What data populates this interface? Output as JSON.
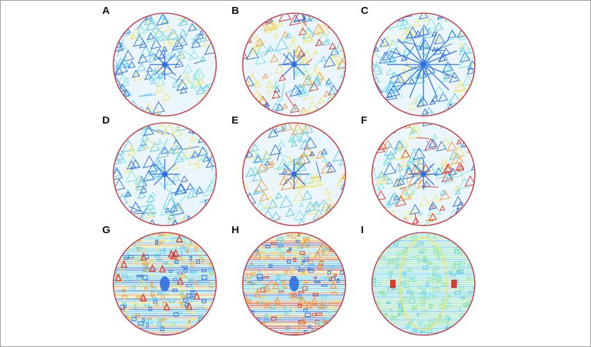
{
  "figure": {
    "panels": [
      {
        "label": "A",
        "style": "random-blue"
      },
      {
        "label": "B",
        "style": "random-yellow"
      },
      {
        "label": "C",
        "style": "star-blue"
      },
      {
        "label": "D",
        "style": "random-blue"
      },
      {
        "label": "E",
        "style": "random-mixed"
      },
      {
        "label": "F",
        "style": "random-orange"
      },
      {
        "label": "G",
        "style": "horizontal-mixed"
      },
      {
        "label": "H",
        "style": "horizontal-orange"
      },
      {
        "label": "I",
        "style": "horizontal-green"
      }
    ],
    "colors": {
      "blue": "#2f6fe0",
      "lightblue": "#5ec8f0",
      "cyan": "#7fe6e0",
      "green": "#9be6a6",
      "yellow": "#f2e46b",
      "orange": "#f29a3c",
      "red": "#e03a2a",
      "rim": "#c9414a"
    }
  }
}
